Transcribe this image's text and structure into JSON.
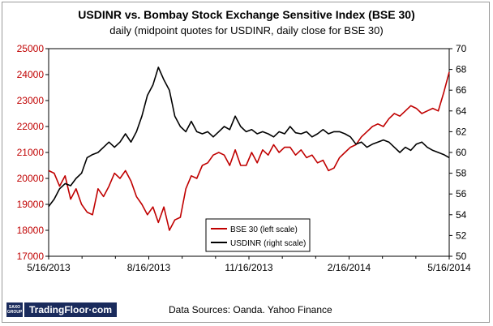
{
  "chart_data": {
    "type": "line",
    "title": "USDINR vs. Bombay Stock Exchange Sensitive Index  (BSE 30)",
    "subtitle": "daily (midpoint quotes for USDINR, daily close for BSE 30)",
    "x_tick_labels": [
      "5/16/2013",
      "8/16/2013",
      "11/16/2013",
      "2/16/2014",
      "5/16/2014"
    ],
    "x_range": [
      "5/16/2013",
      "5/16/2014"
    ],
    "y_left": {
      "min": 17000,
      "max": 25000,
      "step": 1000,
      "tick_labels": [
        "17000",
        "18000",
        "19000",
        "20000",
        "21000",
        "22000",
        "23000",
        "24000",
        "25000"
      ]
    },
    "y_right": {
      "min": 50,
      "max": 70,
      "step": 2,
      "tick_labels": [
        "50",
        "52",
        "54",
        "56",
        "58",
        "60",
        "62",
        "64",
        "66",
        "68",
        "70"
      ]
    },
    "grid": false,
    "legend": {
      "placement": "bottom-center",
      "entries": [
        "BSE 30 (left scale)",
        "USDINR (right scale)"
      ]
    },
    "series": [
      {
        "name": "BSE 30 (left scale)",
        "axis": "left",
        "color": "#c00000",
        "x": [
          0,
          5,
          10,
          15,
          20,
          25,
          30,
          35,
          40,
          45,
          50,
          55,
          60,
          65,
          70,
          75,
          80,
          85,
          90,
          95,
          100,
          105,
          110,
          115,
          120,
          125,
          130,
          135,
          140,
          145,
          150,
          155,
          160,
          165,
          170,
          175,
          180,
          185,
          190,
          195,
          200,
          205,
          210,
          215,
          220,
          225,
          230,
          235,
          240,
          245,
          250,
          255,
          260,
          265,
          270,
          275,
          280,
          285,
          290,
          295,
          300,
          305,
          310,
          315,
          320,
          325,
          330,
          335,
          340,
          345,
          350,
          355,
          360,
          365
        ],
        "values": [
          20300,
          20200,
          19700,
          20100,
          19200,
          19600,
          19000,
          18700,
          18600,
          19600,
          19300,
          19700,
          20200,
          20000,
          20300,
          19900,
          19300,
          19000,
          18600,
          18900,
          18300,
          18900,
          18000,
          18400,
          18500,
          19600,
          20100,
          20000,
          20500,
          20600,
          20900,
          21000,
          20900,
          20500,
          21100,
          20500,
          20500,
          21000,
          20600,
          21100,
          20900,
          21300,
          21000,
          21200,
          21200,
          20900,
          21100,
          20800,
          20900,
          20600,
          20700,
          20300,
          20400,
          20800,
          21000,
          21200,
          21300,
          21600,
          21800,
          22000,
          22100,
          22000,
          22300,
          22500,
          22400,
          22600,
          22800,
          22700,
          22500,
          22600,
          22700,
          22600,
          23300,
          24100
        ]
      },
      {
        "name": "USDINR (right scale)",
        "axis": "right",
        "color": "#000000",
        "x": [
          0,
          5,
          10,
          15,
          20,
          25,
          30,
          35,
          40,
          45,
          50,
          55,
          60,
          65,
          70,
          75,
          80,
          85,
          90,
          95,
          100,
          105,
          110,
          115,
          120,
          125,
          130,
          135,
          140,
          145,
          150,
          155,
          160,
          165,
          170,
          175,
          180,
          185,
          190,
          195,
          200,
          205,
          210,
          215,
          220,
          225,
          230,
          235,
          240,
          245,
          250,
          255,
          260,
          265,
          270,
          275,
          280,
          285,
          290,
          295,
          300,
          305,
          310,
          315,
          320,
          325,
          330,
          335,
          340,
          345,
          350,
          355,
          360,
          365
        ],
        "values": [
          54.8,
          55.5,
          56.5,
          57.0,
          56.8,
          57.5,
          58.0,
          59.5,
          59.8,
          60.0,
          60.5,
          61.0,
          60.5,
          61.0,
          61.8,
          61.0,
          62.0,
          63.5,
          65.5,
          66.5,
          68.2,
          67.0,
          66.0,
          63.5,
          62.5,
          62.0,
          63.0,
          62.0,
          61.8,
          62.0,
          61.5,
          62.0,
          62.5,
          62.2,
          63.5,
          62.5,
          62.0,
          62.2,
          61.8,
          62.0,
          61.8,
          61.5,
          62.0,
          61.8,
          62.5,
          61.9,
          61.8,
          62.0,
          61.5,
          61.8,
          62.2,
          61.8,
          62.0,
          62.0,
          61.8,
          61.5,
          60.8,
          61.0,
          60.5,
          60.8,
          61.0,
          61.2,
          61.0,
          60.5,
          60.0,
          60.5,
          60.2,
          60.8,
          61.0,
          60.5,
          60.2,
          60.0,
          59.8,
          59.5
        ]
      }
    ]
  },
  "brand": {
    "saxo_line1": "SAXO",
    "saxo_line2": "GROUP",
    "name": "TradingFloor·com"
  },
  "source_text": "Data Sources: Oanda. Yahoo Finance"
}
